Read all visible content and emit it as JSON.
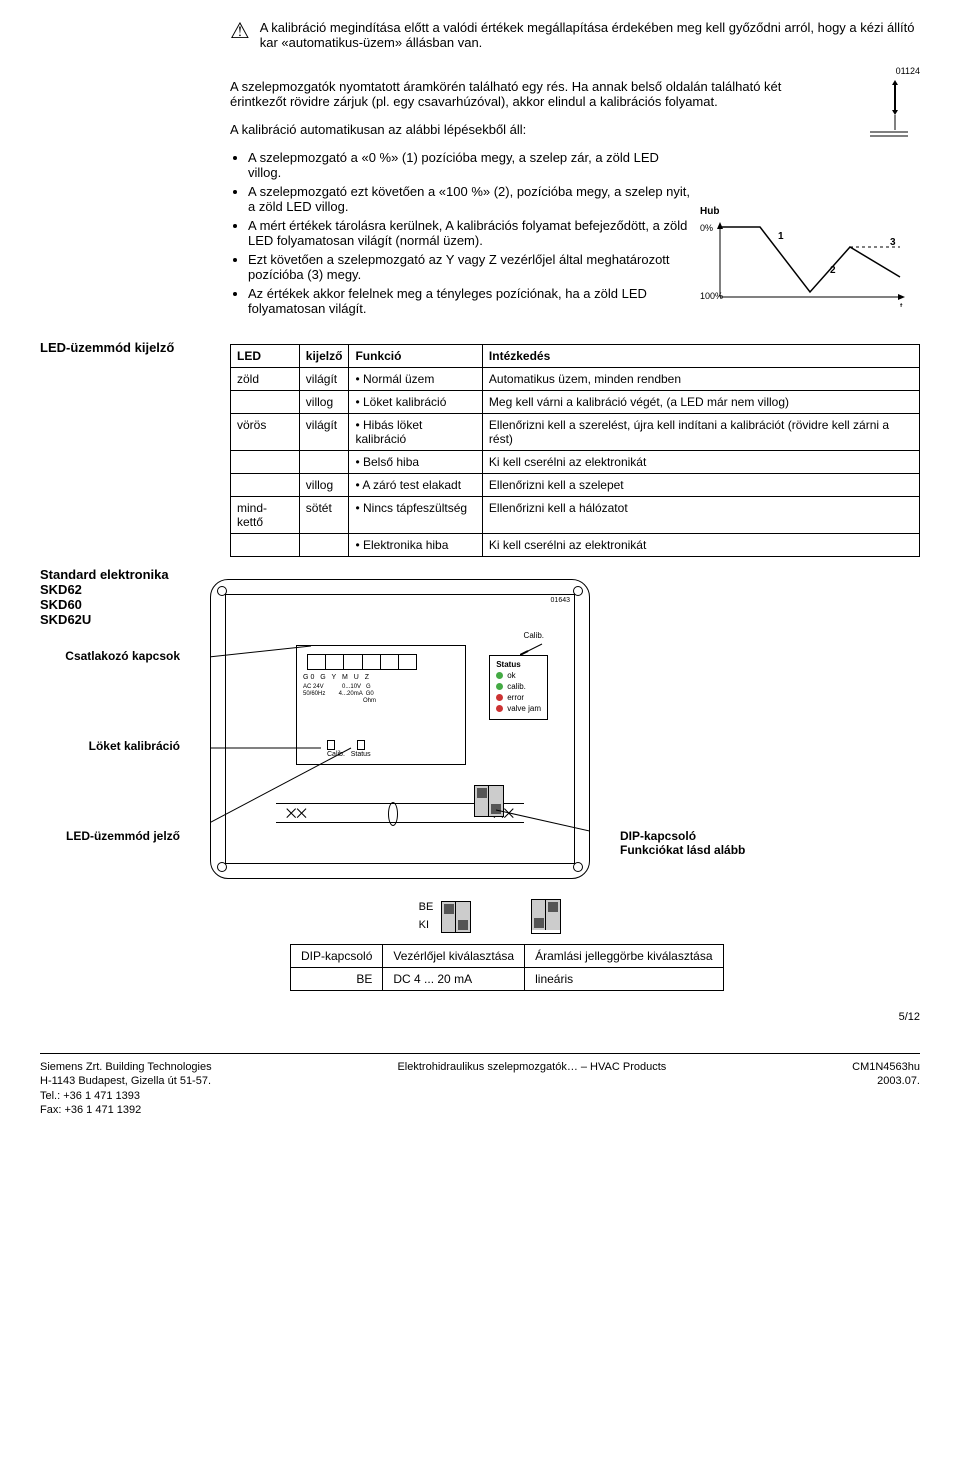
{
  "warning": "A kalibráció megindítása előtt a valódi értékek megállapítása érdekében meg kell győződni arról, hogy a kézi állító kar «automatikus-üzem» állásban van.",
  "intro_p1": "A szelepmozgatók nyomtatott áramkörén található egy rés. Ha annak belső oldalán található két érintkezőt rövidre zárjuk (pl. egy csavarhúzóval), akkor elindul a kalibrációs folyamat.",
  "intro_p2": "A kalibráció automatikusan az alábbi lépésekből áll:",
  "fig_top_id": "01124",
  "steps": [
    "A szelepmozgató a «0 %» (1) pozícióba megy, a szelep zár, a zöld LED villog.",
    "A szelepmozgató ezt követően a «100 %» (2), pozícióba megy, a szelep nyit, a zöld LED villog.",
    "A mért értékek tárolásra kerülnek, A kalibrációs folyamat befejeződött, a zöld LED folyamatosan világít (normál üzem).",
    "Ezt követően a szelepmozgató az Y vagy Z vezérlőjel által meghatározott pozícióba (3) megy.",
    "Az értékek akkor felelnek meg a tényleges pozíciónak, ha a zöld LED folyamatosan világít."
  ],
  "hub_chart": {
    "title": "Hub",
    "y_top": "0%",
    "y_bot": "100%",
    "labels": [
      "1",
      "2",
      "3"
    ],
    "x_label": "t"
  },
  "left_heading_led": "LED-üzemmód kijelző",
  "left_heading_std": "Standard elektronika\nSKD62\nSKD60\nSKD62U",
  "led_table": {
    "headers": [
      "LED",
      "kijelző",
      "Funkció",
      "Intézkedés"
    ],
    "rows": [
      [
        "zöld",
        "világít",
        "• Normál üzem",
        "Automatikus üzem, minden rendben"
      ],
      [
        "",
        "villog",
        "• Löket kalibráció",
        "Meg kell várni a kalibráció végét, (a LED már nem villog)"
      ],
      [
        "vörös",
        "világít",
        "• Hibás löket kalibráció",
        "Ellenőrizni kell a szerelést, újra kell indítani a kalibrációt (rövidre kell zárni a rést)"
      ],
      [
        "",
        "",
        "• Belső hiba",
        "Ki kell cserélni az elektronikát"
      ],
      [
        "",
        "villog",
        "• A záró test elakadt",
        "Ellenőrizni kell a szelepet"
      ],
      [
        "mind-kettő",
        "sötét",
        "• Nincs tápfeszültség",
        "Ellenőrizni kell a hálózatot"
      ],
      [
        "",
        "",
        "• Elektronika hiba",
        "Ki kell cserélni az elektronikát"
      ]
    ]
  },
  "pcb": {
    "callouts": {
      "csatlakozo": "Csatlakozó kapcsok",
      "loket": "Löket kalibráció",
      "led_jelzo": "LED-üzemmód jelző",
      "dip": "DIP-kapcsoló\nFunkciókat lásd alább"
    },
    "terminals": "G0  G   Y   M   U   Z",
    "term_sub": "AC 24V           0...10V   G\n50/60Hz        4...20mA  G0\n                                    Ohm",
    "calib": "Calib.",
    "status_title": "Status",
    "status_rows": [
      {
        "color": "green",
        "label": "ok"
      },
      {
        "color": "green",
        "label": "calib."
      },
      {
        "color": "red",
        "label": "error"
      },
      {
        "color": "red",
        "label": "valve jam"
      }
    ],
    "fig_id": "01643"
  },
  "be_ki": {
    "be": "BE",
    "ki": "KI"
  },
  "dip_table": {
    "rows": [
      [
        "DIP-kapcsoló",
        "Vezérlőjel kiválasztása",
        "Áramlási jelleggörbe kiválasztása"
      ],
      [
        "BE",
        "DC 4 ... 20 mA",
        "lineáris"
      ]
    ]
  },
  "page_num": "5/12",
  "footer": {
    "left": "Siemens Zrt. Building Technologies\nH-1143 Budapest, Gizella út 51-57.\nTel.: +36 1 471 1393\nFax: +36 1 471 1392",
    "center": "Elektrohidraulikus szelepmozgatók…  – HVAC Products",
    "right": "CM1N4563hu\n2003.07."
  }
}
